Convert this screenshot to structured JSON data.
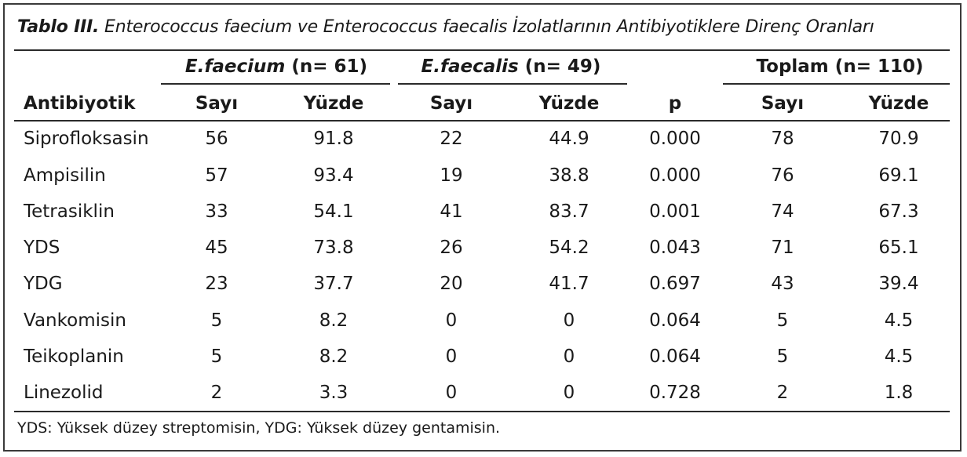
{
  "table": {
    "title_label": "Tablo III.",
    "title_text": "Enterococcus faecium ve Enterococcus faecalis İzolatlarının Antibiyotiklere Direnç Oranları",
    "groups": [
      {
        "name": "E.faecium",
        "n": "(n= 61)"
      },
      {
        "name": "E.faecalis",
        "n": "(n= 49)"
      },
      {
        "name": "Toplam",
        "n": "(n= 110)"
      }
    ],
    "columns": [
      "Antibiyotik",
      "Sayı",
      "Yüzde",
      "Sayı",
      "Yüzde",
      "p",
      "Sayı",
      "Yüzde"
    ],
    "rows": [
      [
        "Siprofloksasin",
        "56",
        "91.8",
        "22",
        "44.9",
        "0.000",
        "78",
        "70.9"
      ],
      [
        "Ampisilin",
        "57",
        "93.4",
        "19",
        "38.8",
        "0.000",
        "76",
        "69.1"
      ],
      [
        "Tetrasiklin",
        "33",
        "54.1",
        "41",
        "83.7",
        "0.001",
        "74",
        "67.3"
      ],
      [
        "YDS",
        "45",
        "73.8",
        "26",
        "54.2",
        "0.043",
        "71",
        "65.1"
      ],
      [
        "YDG",
        "23",
        "37.7",
        "20",
        "41.7",
        "0.697",
        "43",
        "39.4"
      ],
      [
        "Vankomisin",
        "5",
        "8.2",
        "0",
        "0",
        "0.064",
        "5",
        "4.5"
      ],
      [
        "Teikoplanin",
        "5",
        "8.2",
        "0",
        "0",
        "0.064",
        "5",
        "4.5"
      ],
      [
        "Linezolid",
        "2",
        "3.3",
        "0",
        "0",
        "0.728",
        "2",
        "1.8"
      ]
    ],
    "footnote": "YDS: Yüksek düzey streptomisin, YDG: Yüksek düzey gentamisin."
  }
}
